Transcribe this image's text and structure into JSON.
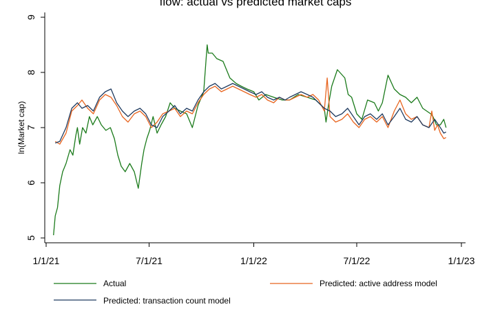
{
  "chart_data": {
    "type": "line",
    "title": "flow: actual vs predicted market caps",
    "ylabel": "ln(Market cap)",
    "xlabel": "",
    "ylim": [
      5,
      9
    ],
    "yticks": [
      5,
      6,
      7,
      8,
      9
    ],
    "xlim": [
      "2021-01-01",
      "2023-01-01"
    ],
    "xticks": [
      {
        "date": "2021-01-01",
        "label": "1/1/21"
      },
      {
        "date": "2021-07-01",
        "label": "7/1/21"
      },
      {
        "date": "2022-01-01",
        "label": "1/1/22"
      },
      {
        "date": "2022-07-01",
        "label": "7/1/22"
      },
      {
        "date": "2023-01-01",
        "label": "1/1/23"
      }
    ],
    "grid": false,
    "legend_position": "bottom",
    "colors": {
      "actual": "#1a7a1a",
      "active_address": "#e8641e",
      "transaction_count": "#1f3a5f"
    },
    "series": [
      {
        "name": "Actual",
        "color": "#1a7a1a",
        "x": [
          "2021-01-14",
          "2021-01-17",
          "2021-01-21",
          "2021-01-25",
          "2021-01-30",
          "2021-02-05",
          "2021-02-12",
          "2021-02-17",
          "2021-02-22",
          "2021-02-25",
          "2021-03-01",
          "2021-03-06",
          "2021-03-12",
          "2021-03-18",
          "2021-03-24",
          "2021-04-01",
          "2021-04-08",
          "2021-04-16",
          "2021-04-24",
          "2021-05-01",
          "2021-05-07",
          "2021-05-13",
          "2021-05-20",
          "2021-05-28",
          "2021-06-05",
          "2021-06-12",
          "2021-06-18",
          "2021-06-22",
          "2021-06-27",
          "2021-07-02",
          "2021-07-08",
          "2021-07-15",
          "2021-07-22",
          "2021-07-30",
          "2021-08-07",
          "2021-08-15",
          "2021-08-25",
          "2021-09-05",
          "2021-09-15",
          "2021-09-25",
          "2021-10-05",
          "2021-10-11",
          "2021-10-13",
          "2021-10-20",
          "2021-10-28",
          "2021-11-08",
          "2021-11-20",
          "2021-12-01",
          "2021-12-10",
          "2021-12-20",
          "2022-01-01",
          "2022-01-10",
          "2022-01-22",
          "2022-02-05",
          "2022-02-20",
          "2022-03-05",
          "2022-03-20",
          "2022-04-05",
          "2022-04-20",
          "2022-04-30",
          "2022-05-05",
          "2022-05-08",
          "2022-05-13",
          "2022-05-18",
          "2022-05-28",
          "2022-06-10",
          "2022-06-16",
          "2022-06-22",
          "2022-07-01",
          "2022-07-10",
          "2022-07-20",
          "2022-08-01",
          "2022-08-08",
          "2022-08-15",
          "2022-08-25",
          "2022-09-05",
          "2022-09-15",
          "2022-09-25",
          "2022-10-05",
          "2022-10-15",
          "2022-10-25",
          "2022-11-01",
          "2022-11-08",
          "2022-11-12",
          "2022-11-18",
          "2022-11-25",
          "2022-12-01",
          "2022-12-05"
        ],
        "y": [
          5.05,
          5.4,
          5.55,
          5.95,
          6.2,
          6.35,
          6.6,
          6.5,
          6.85,
          7.0,
          6.7,
          7.0,
          6.9,
          7.2,
          7.05,
          7.2,
          7.05,
          6.95,
          7.0,
          6.8,
          6.5,
          6.3,
          6.2,
          6.35,
          6.2,
          5.9,
          6.35,
          6.6,
          6.8,
          6.95,
          7.2,
          6.9,
          7.05,
          7.2,
          7.45,
          7.35,
          7.3,
          7.25,
          7.0,
          7.4,
          7.65,
          8.5,
          8.35,
          8.35,
          8.25,
          8.2,
          7.9,
          7.8,
          7.75,
          7.7,
          7.65,
          7.5,
          7.6,
          7.55,
          7.5,
          7.5,
          7.6,
          7.55,
          7.5,
          7.4,
          7.35,
          7.1,
          7.45,
          7.75,
          8.05,
          7.9,
          7.6,
          7.55,
          7.25,
          7.15,
          7.5,
          7.45,
          7.3,
          7.45,
          7.95,
          7.7,
          7.6,
          7.55,
          7.45,
          7.55,
          7.35,
          7.3,
          7.25,
          7.2,
          7.05,
          7.05,
          7.15,
          7.0
        ]
      },
      {
        "name": "Predicted: active address model",
        "color": "#e8641e",
        "x": [
          "2021-01-17",
          "2021-01-25",
          "2021-02-05",
          "2021-02-15",
          "2021-02-25",
          "2021-03-05",
          "2021-03-15",
          "2021-03-25",
          "2021-04-05",
          "2021-04-15",
          "2021-04-25",
          "2021-05-05",
          "2021-05-15",
          "2021-05-25",
          "2021-06-05",
          "2021-06-15",
          "2021-06-25",
          "2021-07-05",
          "2021-07-15",
          "2021-07-25",
          "2021-08-05",
          "2021-08-15",
          "2021-08-25",
          "2021-09-05",
          "2021-09-15",
          "2021-09-25",
          "2021-10-05",
          "2021-10-15",
          "2021-10-25",
          "2021-11-05",
          "2021-11-15",
          "2021-11-25",
          "2021-12-05",
          "2021-12-15",
          "2021-12-25",
          "2022-01-05",
          "2022-01-15",
          "2022-01-25",
          "2022-02-05",
          "2022-02-15",
          "2022-02-25",
          "2022-03-05",
          "2022-03-15",
          "2022-03-25",
          "2022-04-05",
          "2022-04-15",
          "2022-04-25",
          "2022-05-05",
          "2022-05-10",
          "2022-05-15",
          "2022-05-25",
          "2022-06-05",
          "2022-06-15",
          "2022-06-25",
          "2022-07-05",
          "2022-07-15",
          "2022-07-25",
          "2022-08-05",
          "2022-08-15",
          "2022-08-25",
          "2022-09-05",
          "2022-09-15",
          "2022-09-25",
          "2022-10-05",
          "2022-10-15",
          "2022-10-25",
          "2022-11-05",
          "2022-11-10",
          "2022-11-15",
          "2022-11-20",
          "2022-11-25",
          "2022-12-01",
          "2022-12-05"
        ],
        "y": [
          6.75,
          6.7,
          6.9,
          7.3,
          7.4,
          7.5,
          7.35,
          7.25,
          7.5,
          7.6,
          7.55,
          7.4,
          7.2,
          7.1,
          7.25,
          7.3,
          7.2,
          7.0,
          7.1,
          7.25,
          7.3,
          7.35,
          7.2,
          7.3,
          7.25,
          7.45,
          7.6,
          7.7,
          7.75,
          7.65,
          7.7,
          7.75,
          7.7,
          7.65,
          7.6,
          7.55,
          7.6,
          7.5,
          7.45,
          7.55,
          7.5,
          7.5,
          7.55,
          7.6,
          7.55,
          7.6,
          7.5,
          7.3,
          7.9,
          7.2,
          7.1,
          7.15,
          7.25,
          7.1,
          7.0,
          7.15,
          7.2,
          7.1,
          7.2,
          7.0,
          7.3,
          7.5,
          7.25,
          7.15,
          7.2,
          7.05,
          7.0,
          7.3,
          6.95,
          7.05,
          6.9,
          6.8,
          6.82
        ]
      },
      {
        "name": "Predicted: transaction count model",
        "color": "#1f3a5f",
        "x": [
          "2021-01-17",
          "2021-01-25",
          "2021-02-05",
          "2021-02-15",
          "2021-02-25",
          "2021-03-05",
          "2021-03-15",
          "2021-03-25",
          "2021-04-05",
          "2021-04-15",
          "2021-04-25",
          "2021-05-05",
          "2021-05-15",
          "2021-05-25",
          "2021-06-05",
          "2021-06-15",
          "2021-06-25",
          "2021-07-05",
          "2021-07-15",
          "2021-07-25",
          "2021-08-05",
          "2021-08-15",
          "2021-08-25",
          "2021-09-05",
          "2021-09-15",
          "2021-09-25",
          "2021-10-05",
          "2021-10-15",
          "2021-10-25",
          "2021-11-05",
          "2021-11-15",
          "2021-11-25",
          "2021-12-05",
          "2021-12-15",
          "2021-12-25",
          "2022-01-05",
          "2022-01-15",
          "2022-01-25",
          "2022-02-05",
          "2022-02-15",
          "2022-02-25",
          "2022-03-05",
          "2022-03-15",
          "2022-03-25",
          "2022-04-05",
          "2022-04-15",
          "2022-04-25",
          "2022-05-05",
          "2022-05-15",
          "2022-05-25",
          "2022-06-05",
          "2022-06-15",
          "2022-06-25",
          "2022-07-05",
          "2022-07-15",
          "2022-07-25",
          "2022-08-05",
          "2022-08-15",
          "2022-08-25",
          "2022-09-05",
          "2022-09-15",
          "2022-09-25",
          "2022-10-05",
          "2022-10-15",
          "2022-10-25",
          "2022-11-05",
          "2022-11-15",
          "2022-11-25",
          "2022-12-01",
          "2022-12-05"
        ],
        "y": [
          6.72,
          6.75,
          7.0,
          7.35,
          7.45,
          7.35,
          7.4,
          7.3,
          7.55,
          7.65,
          7.7,
          7.45,
          7.3,
          7.2,
          7.3,
          7.35,
          7.25,
          7.05,
          7.0,
          7.2,
          7.3,
          7.4,
          7.25,
          7.35,
          7.3,
          7.5,
          7.65,
          7.75,
          7.8,
          7.7,
          7.75,
          7.8,
          7.75,
          7.7,
          7.65,
          7.6,
          7.65,
          7.55,
          7.5,
          7.55,
          7.5,
          7.55,
          7.6,
          7.65,
          7.6,
          7.55,
          7.45,
          7.35,
          7.3,
          7.2,
          7.25,
          7.35,
          7.2,
          7.05,
          7.2,
          7.25,
          7.15,
          7.25,
          7.05,
          7.2,
          7.35,
          7.15,
          7.1,
          7.2,
          7.05,
          7.0,
          7.15,
          7.0,
          6.9,
          6.92
        ]
      }
    ]
  }
}
